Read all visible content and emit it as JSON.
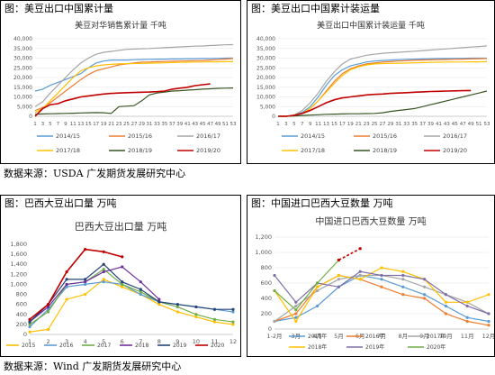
{
  "sources": {
    "top": "数据来源：USDA  广发期货发展研究中心",
    "bottom": "数据来源：Wind   广发期货发展研究中心"
  },
  "panels": {
    "p1": {
      "title": "图：美豆出口中国累计量"
    },
    "p2": {
      "title": "图：美豆出口中国累计装运量"
    },
    "p3": {
      "title": "图：巴西大豆出口量  万吨"
    },
    "p4": {
      "title": "图：中国进口巴西大豆数量  万吨"
    }
  },
  "chart_data": [
    {
      "type": "line",
      "title": "美豆对华销售累计量 千吨",
      "xlabel": "",
      "ylabel": "",
      "x": [
        1,
        3,
        5,
        7,
        9,
        11,
        13,
        15,
        17,
        19,
        21,
        23,
        25,
        27,
        29,
        31,
        33,
        35,
        37,
        39,
        41,
        43,
        45,
        47,
        49,
        51,
        53
      ],
      "ylim": [
        0,
        40000
      ],
      "yticks": [
        "0",
        "5,000",
        "10,000",
        "15,000",
        "20,000",
        "25,000",
        "30,000",
        "35,000",
        "40,000"
      ],
      "legend": "bottom",
      "series": [
        {
          "name": "2014/15",
          "color": "#5b9bd5",
          "values": [
            13000,
            14000,
            16000,
            17500,
            19000,
            20500,
            22000,
            25000,
            27500,
            28500,
            29000,
            29000,
            29000,
            29200,
            29300,
            29400,
            29500,
            29500,
            29600,
            29600,
            29700,
            29700,
            29800,
            29800,
            29900,
            30000,
            30100
          ]
        },
        {
          "name": "2015/16",
          "color": "#ed7d31",
          "values": [
            3000,
            4500,
            7000,
            10000,
            13000,
            16000,
            19000,
            21500,
            23500,
            24500,
            25500,
            26500,
            27000,
            27500,
            28000,
            28000,
            28200,
            28300,
            28400,
            28500,
            28600,
            28700,
            28800,
            29000,
            29200,
            29500,
            29800
          ]
        },
        {
          "name": "2016/17",
          "color": "#a5a5a5",
          "values": [
            5000,
            7500,
            12000,
            16000,
            20000,
            24000,
            27500,
            30000,
            32000,
            33000,
            33500,
            34000,
            34500,
            34700,
            34900,
            35000,
            35200,
            35400,
            35600,
            35800,
            36000,
            36200,
            36300,
            36500,
            36700,
            36900,
            37000
          ]
        },
        {
          "name": "2017/18",
          "color": "#ffc000",
          "values": [
            2000,
            4000,
            8000,
            12000,
            16000,
            20000,
            23500,
            25000,
            26000,
            26500,
            26800,
            27000,
            27100,
            27200,
            27300,
            27400,
            27500,
            27600,
            27700,
            27800,
            27900,
            28000,
            28000,
            28100,
            28100,
            28200,
            28200
          ]
        },
        {
          "name": "2018/19",
          "color": "#375623",
          "values": [
            1000,
            1200,
            1300,
            1400,
            1500,
            1600,
            1700,
            1800,
            1900,
            1800,
            1500,
            5000,
            5200,
            5500,
            8000,
            11000,
            12000,
            12500,
            13000,
            13200,
            13500,
            13700,
            14000,
            14200,
            14400,
            14500,
            14600
          ]
        },
        {
          "name": "2019/20",
          "color": "#c00000",
          "values": [
            0,
            4000,
            6000,
            6500,
            8000,
            9000,
            10000,
            10500,
            11000,
            11500,
            11800,
            12000,
            12200,
            12300,
            12400,
            12500,
            12700,
            13000,
            14000,
            14500,
            15000,
            15800,
            16300,
            16700,
            null,
            null,
            null
          ]
        }
      ]
    },
    {
      "type": "line",
      "title": "美豆出口中国累计装运量 千吨",
      "xlabel": "",
      "ylabel": "",
      "x": [
        1,
        3,
        5,
        7,
        9,
        11,
        13,
        15,
        17,
        19,
        21,
        23,
        25,
        27,
        29,
        31,
        33,
        35,
        37,
        39,
        41,
        43,
        45,
        47,
        49,
        51,
        53
      ],
      "ylim": [
        0,
        40000
      ],
      "yticks": [
        "0",
        "5,000",
        "10,000",
        "15,000",
        "20,000",
        "25,000",
        "30,000",
        "35,000",
        "40,000"
      ],
      "legend": "bottom",
      "series": [
        {
          "name": "2014/15",
          "color": "#5b9bd5",
          "values": [
            0,
            0,
            500,
            2000,
            5000,
            10000,
            16000,
            21000,
            24000,
            26000,
            27000,
            28000,
            28500,
            28800,
            29000,
            29200,
            29400,
            29500,
            29600,
            29700,
            29800,
            29800,
            29900,
            29900,
            30000,
            30000,
            30000
          ]
        },
        {
          "name": "2015/16",
          "color": "#ed7d31",
          "values": [
            0,
            0,
            400,
            1500,
            4000,
            8000,
            13000,
            18000,
            22000,
            24500,
            26000,
            27000,
            27500,
            28000,
            28200,
            28500,
            28700,
            28900,
            29000,
            29100,
            29200,
            29300,
            29400,
            29500,
            29600,
            29700,
            29800
          ]
        },
        {
          "name": "2016/17",
          "color": "#a5a5a5",
          "values": [
            0,
            0,
            600,
            3000,
            7000,
            12000,
            18000,
            23000,
            27000,
            29500,
            30500,
            31500,
            32000,
            32500,
            32800,
            33000,
            33300,
            33600,
            33900,
            34200,
            34500,
            34800,
            35100,
            35400,
            35700,
            36000,
            36300
          ]
        },
        {
          "name": "2017/18",
          "color": "#ffc000",
          "values": [
            0,
            0,
            300,
            1500,
            4000,
            8000,
            12500,
            17000,
            21000,
            24000,
            25500,
            26500,
            27000,
            27200,
            27300,
            27400,
            27500,
            27600,
            27700,
            27800,
            27900,
            28000,
            28000,
            28000,
            28100,
            28100,
            28200
          ]
        },
        {
          "name": "2018/19",
          "color": "#375623",
          "values": [
            0,
            0,
            200,
            400,
            600,
            800,
            1000,
            1100,
            1200,
            1300,
            1300,
            1400,
            1500,
            1800,
            2500,
            3000,
            3500,
            4000,
            5000,
            6000,
            7000,
            8000,
            9000,
            10000,
            11000,
            12000,
            13000
          ]
        },
        {
          "name": "2019/20",
          "color": "#c00000",
          "values": [
            0,
            0,
            500,
            1500,
            3000,
            5000,
            7000,
            8500,
            9500,
            10000,
            10500,
            11000,
            11300,
            11500,
            11800,
            12000,
            12200,
            12400,
            12600,
            12800,
            12900,
            13000,
            13100,
            13200,
            13300,
            null,
            null
          ]
        }
      ]
    },
    {
      "type": "line",
      "title": "巴西大豆出口量 万吨",
      "xlabel": "",
      "ylabel": "",
      "x": [
        "1",
        "2",
        "3",
        "4",
        "5",
        "6",
        "7",
        "8",
        "9",
        "10",
        "11",
        "12"
      ],
      "ylim": [
        0,
        1800
      ],
      "yticks": [
        "0",
        "200",
        "400",
        "600",
        "800",
        "1,000",
        "1,200",
        "1,400",
        "1,600",
        "1,800"
      ],
      "legend": "bottom",
      "series": [
        {
          "name": "2015",
          "color": "#ffc000",
          "values": [
            50,
            100,
            700,
            800,
            1100,
            950,
            800,
            600,
            450,
            350,
            250,
            200
          ]
        },
        {
          "name": "2016",
          "color": "#5b9bd5",
          "values": [
            150,
            500,
            950,
            1000,
            1050,
            1000,
            800,
            650,
            600,
            550,
            500,
            450
          ]
        },
        {
          "name": "2017",
          "color": "#70ad47",
          "values": [
            200,
            450,
            1000,
            1050,
            1300,
            1000,
            850,
            650,
            550,
            400,
            300,
            250
          ]
        },
        {
          "name": "2018",
          "color": "#7030a0",
          "values": [
            250,
            550,
            1000,
            1050,
            1250,
            1350,
            1050,
            700,
            null,
            null,
            null,
            null
          ]
        },
        {
          "name": "2019",
          "color": "#264478",
          "values": [
            250,
            600,
            1100,
            1100,
            1400,
            1050,
            900,
            650,
            600,
            550,
            500,
            500
          ]
        },
        {
          "name": "2020",
          "color": "#c00000",
          "values": [
            300,
            600,
            1250,
            1700,
            1650,
            1550,
            null,
            null,
            null,
            null,
            null,
            null
          ]
        }
      ]
    },
    {
      "type": "line",
      "title": "中国进口巴西大豆数量 万吨",
      "xlabel": "",
      "ylabel": "",
      "x": [
        "1-2月",
        "3月",
        "4月",
        "5月",
        "6月",
        "7月",
        "8月",
        "9月",
        "10月",
        "11月",
        "12月"
      ],
      "ylim": [
        0,
        1200
      ],
      "yticks": [
        "0",
        "200",
        "400",
        "600",
        "800",
        "1,000",
        "1,200"
      ],
      "legend": "bottom",
      "series": [
        {
          "name": "2015年",
          "color": "#5b9bd5",
          "values": [
            100,
            150,
            300,
            550,
            700,
            650,
            550,
            450,
            300,
            150,
            100
          ]
        },
        {
          "name": "2016年",
          "color": "#ed7d31",
          "values": [
            100,
            200,
            550,
            700,
            650,
            550,
            450,
            400,
            200,
            100,
            50
          ]
        },
        {
          "name": "2017年",
          "color": "#a5a5a5",
          "values": [
            100,
            300,
            500,
            650,
            700,
            700,
            650,
            550,
            450,
            350,
            200
          ]
        },
        {
          "name": "2018年",
          "color": "#ffc000",
          "values": [
            500,
            100,
            550,
            700,
            650,
            800,
            750,
            650,
            350,
            350,
            450
          ]
        },
        {
          "name": "2019年",
          "color": "#7f6fa8",
          "values": [
            700,
            350,
            600,
            550,
            750,
            700,
            700,
            650,
            450,
            300,
            200
          ]
        },
        {
          "name": "2020年",
          "color": "#70ad47",
          "values": [
            500,
            250,
            600,
            900,
            null,
            null,
            null,
            null,
            null,
            null,
            null
          ]
        },
        {
          "name": "",
          "color": "#c00000",
          "dashed": true,
          "values": [
            null,
            null,
            null,
            900,
            1050,
            null,
            null,
            null,
            null,
            null,
            null
          ]
        }
      ]
    }
  ]
}
